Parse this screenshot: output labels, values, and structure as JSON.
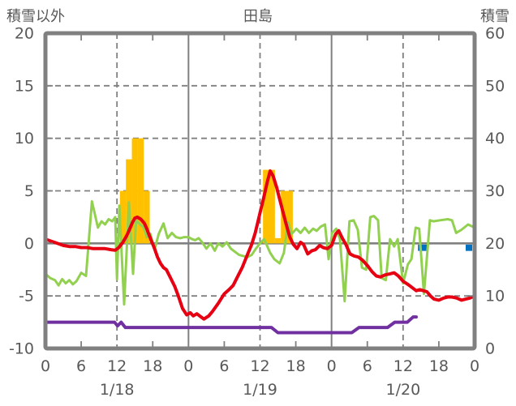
{
  "header": {
    "left_axis_title": "積雪以外",
    "station_title": "田島",
    "right_axis_title": "積雪"
  },
  "chart_data": {
    "type": "line",
    "title": "田島",
    "left_axis": {
      "label": "積雪以外",
      "ticks": [
        20,
        15,
        10,
        5,
        0,
        -5,
        -10
      ],
      "min": -10,
      "max": 20
    },
    "right_axis": {
      "label": "積雪",
      "ticks": [
        60,
        50,
        40,
        30,
        20,
        10,
        0
      ],
      "min": 0,
      "max": 60
    },
    "x_axis": {
      "min_hour": 0,
      "max_hour": 72,
      "hour_labels": [
        "0",
        "6",
        "12",
        "18",
        "0",
        "6",
        "12",
        "18",
        "0",
        "6",
        "12",
        "18",
        "0"
      ],
      "hour_label_step": 6,
      "date_labels": [
        {
          "label": "1/18",
          "hour": 12
        },
        {
          "label": "1/19",
          "hour": 36
        },
        {
          "label": "1/20",
          "hour": 60
        }
      ],
      "solid_gridline_hours": [
        24,
        48
      ],
      "dashed_gridline_hours": [
        12,
        36,
        60
      ],
      "minor_tick_hours": [
        6,
        18,
        30,
        42,
        54,
        66
      ]
    },
    "grid": {
      "dashed_value_lines": [
        15,
        10,
        5,
        -5
      ],
      "zero_line_value": 0
    },
    "colors": {
      "border": "#808080",
      "grid": "#808080",
      "text": "#595959",
      "background": "#ffffff"
    },
    "series": [
      {
        "name": "precipitation-bars",
        "type": "bar",
        "axis": "left",
        "color": "#FFC000",
        "bars": [
          [
            13,
            5
          ],
          [
            14,
            8
          ],
          [
            15,
            10
          ],
          [
            16,
            10
          ],
          [
            17,
            5
          ],
          [
            37,
            7
          ],
          [
            38,
            7
          ],
          [
            39,
            0.5
          ],
          [
            40,
            5
          ],
          [
            41,
            5
          ]
        ]
      },
      {
        "name": "blue-marks",
        "type": "bar-span",
        "axis": "left",
        "color": "#0070C0",
        "value": -0.6,
        "spans": [
          [
            62.5,
            64.2
          ],
          [
            70.5,
            71.6
          ]
        ]
      },
      {
        "name": "green-line",
        "type": "line",
        "axis": "left",
        "color": "#92D050",
        "width": 3,
        "points": [
          [
            0,
            -2.9
          ],
          [
            0.8,
            -3.3
          ],
          [
            1.6,
            -3.5
          ],
          [
            2.2,
            -4.0
          ],
          [
            2.8,
            -3.4
          ],
          [
            3.4,
            -3.8
          ],
          [
            4,
            -3.5
          ],
          [
            4.6,
            -3.9
          ],
          [
            5.2,
            -3.6
          ],
          [
            6,
            -2.8
          ],
          [
            6.8,
            -3.1
          ],
          [
            7.8,
            4.0
          ],
          [
            8.8,
            1.5
          ],
          [
            9.4,
            2.1
          ],
          [
            10,
            1.8
          ],
          [
            10.6,
            2.3
          ],
          [
            11.2,
            2.1
          ],
          [
            11.7,
            2.5
          ],
          [
            12,
            -3.4
          ],
          [
            12.4,
            3.6
          ],
          [
            13.2,
            -5.8
          ],
          [
            14,
            3.9
          ],
          [
            14.7,
            -2.9
          ],
          [
            15.2,
            2.2
          ],
          [
            15.9,
            1.8
          ],
          [
            16.5,
            1.5
          ],
          [
            17,
            0.6
          ],
          [
            17.6,
            0.9
          ],
          [
            18.3,
            -0.6
          ],
          [
            19,
            0.9
          ],
          [
            19.8,
            1.9
          ],
          [
            20.5,
            0.5
          ],
          [
            21.2,
            1.0
          ],
          [
            21.9,
            0.6
          ],
          [
            22.6,
            0.5
          ],
          [
            23.3,
            0.6
          ],
          [
            24,
            0.6
          ],
          [
            24.6,
            0.4
          ],
          [
            25.1,
            0.3
          ],
          [
            25.7,
            0.5
          ],
          [
            26.3,
            0.1
          ],
          [
            27,
            -0.5
          ],
          [
            27.7,
            0
          ],
          [
            28.4,
            -0.7
          ],
          [
            29,
            0
          ],
          [
            29.7,
            -0.3
          ],
          [
            30.4,
            0.1
          ],
          [
            31.1,
            -0.5
          ],
          [
            31.8,
            -0.8
          ],
          [
            32.5,
            -1.1
          ],
          [
            33.2,
            -1.2
          ],
          [
            33.9,
            -1.3
          ],
          [
            34.6,
            -1.1
          ],
          [
            35.3,
            -0.5
          ],
          [
            36,
            0
          ],
          [
            36.7,
            0.4
          ],
          [
            37.7,
            -0.9
          ],
          [
            38.4,
            -1.5
          ],
          [
            39.3,
            -1.9
          ],
          [
            40,
            -0.9
          ],
          [
            40.7,
            2.0
          ],
          [
            41.3,
            0.9
          ],
          [
            42.1,
            1.4
          ],
          [
            42.8,
            1.0
          ],
          [
            43.5,
            1.5
          ],
          [
            44.2,
            1.0
          ],
          [
            44.9,
            1.4
          ],
          [
            45.5,
            1.2
          ],
          [
            46.2,
            1.6
          ],
          [
            46.9,
            1.8
          ],
          [
            47.5,
            -1.5
          ],
          [
            48.1,
            1.0
          ],
          [
            48.8,
            1.4
          ],
          [
            49.4,
            0.4
          ],
          [
            50.2,
            -5.5
          ],
          [
            51,
            2.1
          ],
          [
            51.7,
            2.2
          ],
          [
            52.4,
            1.3
          ],
          [
            53.1,
            -2.3
          ],
          [
            53.8,
            -2.5
          ],
          [
            54.5,
            2.5
          ],
          [
            55.1,
            2.6
          ],
          [
            55.8,
            2.2
          ],
          [
            56.4,
            -3.3
          ],
          [
            57.1,
            -3.5
          ],
          [
            57.8,
            0.4
          ],
          [
            58.5,
            -0.3
          ],
          [
            59.1,
            0.4
          ],
          [
            60,
            -3.8
          ],
          [
            60.8,
            -2.0
          ],
          [
            61.4,
            -1.5
          ],
          [
            62.1,
            1.5
          ],
          [
            62.7,
            1.4
          ],
          [
            63.5,
            -4.8
          ],
          [
            64.5,
            2.2
          ],
          [
            65.1,
            2.1
          ],
          [
            66.2,
            2.2
          ],
          [
            67.5,
            2.3
          ],
          [
            68.2,
            2.2
          ],
          [
            68.9,
            1.0
          ],
          [
            69.8,
            1.3
          ],
          [
            70.9,
            1.8
          ],
          [
            72,
            1.5
          ]
        ]
      },
      {
        "name": "purple-snow-depth-line",
        "type": "line",
        "axis": "right",
        "color": "#7030A0",
        "width": 4,
        "points": [
          [
            0,
            5
          ],
          [
            11.6,
            5
          ],
          [
            12.1,
            4.3
          ],
          [
            12.7,
            5
          ],
          [
            13.4,
            4
          ],
          [
            37.9,
            4
          ],
          [
            39,
            3
          ],
          [
            51.4,
            3
          ],
          [
            52.6,
            4
          ],
          [
            57.4,
            4
          ],
          [
            58.6,
            5
          ],
          [
            60.7,
            5
          ],
          [
            61.7,
            6
          ],
          [
            62.2,
            6
          ]
        ]
      },
      {
        "name": "red-temperature-line",
        "type": "line",
        "axis": "left",
        "color": "#E60012",
        "width": 4,
        "points": [
          [
            0,
            0.4
          ],
          [
            1,
            0.2
          ],
          [
            2,
            0
          ],
          [
            3,
            -0.2
          ],
          [
            4,
            -0.3
          ],
          [
            5,
            -0.3
          ],
          [
            6,
            -0.4
          ],
          [
            7,
            -0.4
          ],
          [
            8,
            -0.5
          ],
          [
            9,
            -0.5
          ],
          [
            10,
            -0.5
          ],
          [
            11,
            -0.6
          ],
          [
            11.7,
            -0.65
          ],
          [
            12.3,
            -0.4
          ],
          [
            13,
            0.1
          ],
          [
            13.6,
            0.7
          ],
          [
            14,
            1.2
          ],
          [
            14.6,
            2.0
          ],
          [
            15,
            2.4
          ],
          [
            15.4,
            2.5
          ],
          [
            16,
            2.3
          ],
          [
            16.6,
            1.9
          ],
          [
            17,
            1.4
          ],
          [
            17.4,
            0.8
          ],
          [
            17.8,
            0.2
          ],
          [
            18.3,
            -0.5
          ],
          [
            18.8,
            -1.3
          ],
          [
            19.3,
            -1.9
          ],
          [
            19.8,
            -2.3
          ],
          [
            20.3,
            -2.5
          ],
          [
            21,
            -3.3
          ],
          [
            21.7,
            -4.1
          ],
          [
            22.3,
            -5.0
          ],
          [
            23,
            -6.2
          ],
          [
            23.7,
            -6.8
          ],
          [
            24.3,
            -6.6
          ],
          [
            24.8,
            -6.9
          ],
          [
            25.4,
            -6.7
          ],
          [
            26.1,
            -7.0
          ],
          [
            26.6,
            -7.2
          ],
          [
            27.4,
            -6.9
          ],
          [
            28,
            -6.5
          ],
          [
            29,
            -5.7
          ],
          [
            30,
            -4.8
          ],
          [
            30.8,
            -4.4
          ],
          [
            31.5,
            -4.0
          ],
          [
            32.2,
            -3.2
          ],
          [
            33,
            -2.3
          ],
          [
            33.8,
            -1.2
          ],
          [
            34.6,
            -0.1
          ],
          [
            35.2,
            1.0
          ],
          [
            36,
            2.9
          ],
          [
            36.6,
            4.3
          ],
          [
            37.2,
            5.8
          ],
          [
            37.7,
            6.9
          ],
          [
            38.2,
            6.4
          ],
          [
            38.8,
            5.3
          ],
          [
            39.3,
            4.2
          ],
          [
            39.8,
            3.1
          ],
          [
            40.4,
            1.8
          ],
          [
            41,
            0.6
          ],
          [
            41.6,
            -0.1
          ],
          [
            42.2,
            -0.5
          ],
          [
            42.8,
            0.1
          ],
          [
            43.3,
            -0.1
          ],
          [
            44,
            -1.0
          ],
          [
            44.7,
            -0.7
          ],
          [
            45.3,
            -0.6
          ],
          [
            46,
            -0.2
          ],
          [
            46.6,
            -0.4
          ],
          [
            47.3,
            -0.5
          ],
          [
            48,
            -0.2
          ],
          [
            48.7,
            0.9
          ],
          [
            49.2,
            1.2
          ],
          [
            49.8,
            0.5
          ],
          [
            50.4,
            -0.1
          ],
          [
            51.1,
            -1.0
          ],
          [
            51.8,
            -1.2
          ],
          [
            52.5,
            -1.3
          ],
          [
            53.2,
            -1.6
          ],
          [
            54,
            -2.1
          ],
          [
            54.8,
            -2.7
          ],
          [
            55.5,
            -3.1
          ],
          [
            56.2,
            -3.2
          ],
          [
            57,
            -3.0
          ],
          [
            57.8,
            -2.9
          ],
          [
            58.5,
            -2.8
          ],
          [
            59.2,
            -3.1
          ],
          [
            60,
            -3.6
          ],
          [
            60.8,
            -3.9
          ],
          [
            61.5,
            -4.2
          ],
          [
            62.2,
            -4.5
          ],
          [
            62.8,
            -4.4
          ],
          [
            63.4,
            -4.5
          ],
          [
            64,
            -4.6
          ],
          [
            64.6,
            -5.0
          ],
          [
            65.2,
            -5.3
          ],
          [
            66,
            -5.4
          ],
          [
            66.8,
            -5.2
          ],
          [
            67.5,
            -5.1
          ],
          [
            68.2,
            -5.1
          ],
          [
            69,
            -5.2
          ],
          [
            69.8,
            -5.4
          ],
          [
            70.5,
            -5.3
          ],
          [
            71.2,
            -5.2
          ],
          [
            72,
            -5.0
          ]
        ]
      }
    ]
  }
}
